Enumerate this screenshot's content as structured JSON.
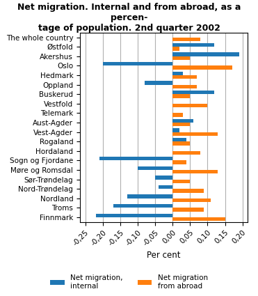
{
  "chart_data": {
    "type": "bar",
    "orientation": "horizontal",
    "title": "Net migration. Internal and from abroad, as a percen-\ntage of population. 2nd quarter 2002",
    "x_label": "Per cent",
    "categories": [
      "The whole country",
      "Østfold",
      "Akershus",
      "Oslo",
      "Hedmark",
      "Oppland",
      "Buskerud",
      "Vestfold",
      "Telemark",
      "Aust-Agder",
      "Vest-Agder",
      "Rogaland",
      "Hordaland",
      "Sogn og Fjordane",
      "Møre og Romsdal",
      "Sør-Trøndelag",
      "Nord-Trøndelag",
      "Nordland",
      "Troms",
      "Finnmark"
    ],
    "series": [
      {
        "name": "Net migration,\ninternal",
        "values": [
          0.0,
          0.12,
          0.19,
          -0.2,
          0.03,
          -0.08,
          0.12,
          0.0,
          0.0,
          0.06,
          0.02,
          0.04,
          0.0,
          -0.21,
          -0.1,
          -0.05,
          -0.04,
          -0.13,
          -0.17,
          -0.22
        ]
      },
      {
        "name": "Net migration\nfrom abroad",
        "values": [
          0.08,
          0.02,
          0.05,
          0.17,
          0.07,
          0.07,
          0.05,
          0.1,
          0.03,
          0.05,
          0.13,
          0.05,
          0.08,
          0.04,
          0.13,
          0.05,
          0.09,
          0.11,
          0.09,
          0.15
        ]
      }
    ],
    "xlim": [
      -0.265,
      0.215
    ],
    "xticks": [
      {
        "value": -0.25,
        "label": "-0,25"
      },
      {
        "value": -0.2,
        "label": "-0,20"
      },
      {
        "value": -0.15,
        "label": "-0,15"
      },
      {
        "value": -0.1,
        "label": "-0,10"
      },
      {
        "value": -0.05,
        "label": "-0,05"
      },
      {
        "value": 0.0,
        "label": "0,00"
      },
      {
        "value": 0.05,
        "label": "0,05"
      },
      {
        "value": 0.1,
        "label": "0,10"
      },
      {
        "value": 0.15,
        "label": "0,15"
      },
      {
        "value": 0.2,
        "label": "0,20"
      }
    ],
    "grid": true,
    "legend": "lower center"
  }
}
